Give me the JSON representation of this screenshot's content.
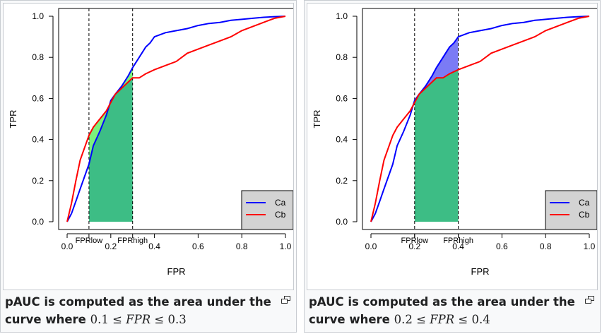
{
  "chart_data": [
    {
      "type": "line",
      "xlabel": "FPR",
      "ylabel": "TPR",
      "xlim": [
        0,
        1
      ],
      "ylim": [
        0,
        1
      ],
      "x_ticks": [
        "0.0",
        "0.2",
        "0.4",
        "0.6",
        "0.8",
        "1.0"
      ],
      "y_ticks": [
        "0.0",
        "0.2",
        "0.4",
        "0.6",
        "0.8",
        "1.0"
      ],
      "fpr_low": 0.1,
      "fpr_high": 0.3,
      "fpr_low_label": "FPRlow",
      "fpr_high_label": "FPRhigh",
      "highlight_color": "#7cf07c",
      "legend_position": "bottom-right",
      "series": [
        {
          "name": "Ca",
          "color": "#0000ff",
          "x": [
            0,
            0.02,
            0.04,
            0.06,
            0.08,
            0.1,
            0.12,
            0.15,
            0.18,
            0.2,
            0.22,
            0.25,
            0.28,
            0.3,
            0.33,
            0.36,
            0.38,
            0.4,
            0.45,
            0.5,
            0.55,
            0.6,
            0.65,
            0.7,
            0.75,
            0.8,
            0.85,
            0.9,
            0.95,
            1.0
          ],
          "y": [
            0,
            0.04,
            0.1,
            0.16,
            0.22,
            0.28,
            0.37,
            0.44,
            0.52,
            0.59,
            0.62,
            0.66,
            0.71,
            0.75,
            0.8,
            0.85,
            0.87,
            0.9,
            0.92,
            0.93,
            0.94,
            0.955,
            0.965,
            0.97,
            0.98,
            0.985,
            0.99,
            0.995,
            0.998,
            1.0
          ]
        },
        {
          "name": "Cb",
          "color": "#ff0000",
          "x": [
            0,
            0.02,
            0.04,
            0.06,
            0.08,
            0.1,
            0.12,
            0.15,
            0.18,
            0.2,
            0.22,
            0.25,
            0.28,
            0.3,
            0.33,
            0.36,
            0.4,
            0.45,
            0.5,
            0.55,
            0.6,
            0.65,
            0.7,
            0.75,
            0.8,
            0.85,
            0.9,
            0.95,
            1.0
          ],
          "y": [
            0,
            0.09,
            0.2,
            0.3,
            0.36,
            0.42,
            0.46,
            0.5,
            0.54,
            0.58,
            0.62,
            0.65,
            0.68,
            0.7,
            0.7,
            0.72,
            0.74,
            0.76,
            0.78,
            0.82,
            0.84,
            0.86,
            0.88,
            0.9,
            0.93,
            0.95,
            0.97,
            0.99,
            1.0
          ]
        }
      ],
      "caption_text": "pAUC is computed as the area under the curve where ",
      "caption_math": [
        "0.1 ≤ ",
        "FPR",
        " ≤ 0.3"
      ]
    },
    {
      "type": "line",
      "xlabel": "FPR",
      "ylabel": "TPR",
      "xlim": [
        0,
        1
      ],
      "ylim": [
        0,
        1
      ],
      "x_ticks": [
        "0.0",
        "0.2",
        "0.4",
        "0.6",
        "0.8",
        "1.0"
      ],
      "y_ticks": [
        "0.0",
        "0.2",
        "0.4",
        "0.6",
        "0.8",
        "1.0"
      ],
      "fpr_low": 0.2,
      "fpr_high": 0.4,
      "fpr_low_label": "FPRlow",
      "fpr_high_label": "FPRhigh",
      "highlight_color": "#7b7bf5",
      "legend_position": "bottom-right",
      "series": [
        {
          "name": "Ca",
          "color": "#0000ff",
          "x": [
            0,
            0.02,
            0.04,
            0.06,
            0.08,
            0.1,
            0.12,
            0.15,
            0.18,
            0.2,
            0.22,
            0.25,
            0.28,
            0.3,
            0.33,
            0.36,
            0.38,
            0.4,
            0.45,
            0.5,
            0.55,
            0.6,
            0.65,
            0.7,
            0.75,
            0.8,
            0.85,
            0.9,
            0.95,
            1.0
          ],
          "y": [
            0,
            0.04,
            0.1,
            0.16,
            0.22,
            0.28,
            0.37,
            0.44,
            0.52,
            0.59,
            0.62,
            0.66,
            0.71,
            0.75,
            0.8,
            0.85,
            0.87,
            0.9,
            0.92,
            0.93,
            0.94,
            0.955,
            0.965,
            0.97,
            0.98,
            0.985,
            0.99,
            0.995,
            0.998,
            1.0
          ]
        },
        {
          "name": "Cb",
          "color": "#ff0000",
          "x": [
            0,
            0.02,
            0.04,
            0.06,
            0.08,
            0.1,
            0.12,
            0.15,
            0.18,
            0.2,
            0.22,
            0.25,
            0.28,
            0.3,
            0.33,
            0.36,
            0.4,
            0.45,
            0.5,
            0.55,
            0.6,
            0.65,
            0.7,
            0.75,
            0.8,
            0.85,
            0.9,
            0.95,
            1.0
          ],
          "y": [
            0,
            0.09,
            0.2,
            0.3,
            0.36,
            0.42,
            0.46,
            0.5,
            0.54,
            0.58,
            0.62,
            0.65,
            0.68,
            0.7,
            0.7,
            0.72,
            0.74,
            0.76,
            0.78,
            0.82,
            0.84,
            0.86,
            0.88,
            0.9,
            0.93,
            0.95,
            0.97,
            0.99,
            1.0
          ]
        }
      ],
      "caption_text": "pAUC is computed as the area under the curve where ",
      "caption_math": [
        "0.2 ≤ ",
        "FPR",
        " ≤ 0.4"
      ]
    }
  ],
  "colors": {
    "overlap_fill": "#3dbd85"
  }
}
